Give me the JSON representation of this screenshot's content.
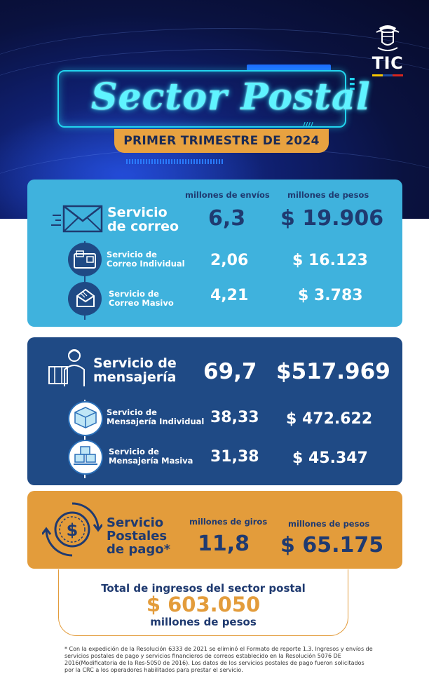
{
  "brand": {
    "logo_text": "TIC",
    "flag_colors": [
      "#f7c600",
      "#1e4ea1",
      "#d7261e"
    ],
    "crest": "colombia-coat-of-arms-icon"
  },
  "header": {
    "title": "Sector Postal",
    "subtitle": "PRIMER TRIMESTRE DE 2024"
  },
  "correo": {
    "col_envios": "millones de envíos",
    "col_pesos": "millones de pesos",
    "main": {
      "label_line1": "Servicio",
      "label_line2": "de correo",
      "envios": "6,3",
      "pesos": "$ 19.906",
      "icon": "envelope-icon"
    },
    "individual": {
      "label_line1": "Servicio de",
      "label_line2": "Correo Individual",
      "envios": "2,06",
      "pesos": "$ 16.123",
      "icon": "mailbox-icon"
    },
    "masivo": {
      "label_line1": "Servicio de",
      "label_line2": "Correo Masivo",
      "envios": "4,21",
      "pesos": "$ 3.783",
      "icon": "open-envelope-icon"
    }
  },
  "mensajeria": {
    "main": {
      "label_line1": "Servicio de",
      "label_line2": "mensajería",
      "envios": "69,7",
      "pesos": "$517.969",
      "icon": "courier-icon"
    },
    "individual": {
      "label_line1": "Servicio de",
      "label_line2": "Mensajería Individual",
      "envios": "38,33",
      "pesos": "$ 472.622",
      "icon": "package-icon"
    },
    "masiva": {
      "label_line1": "Servicio de",
      "label_line2": "Mensajería Masiva",
      "envios": "31,38",
      "pesos": "$ 45.347",
      "icon": "stacked-packages-icon"
    }
  },
  "pago": {
    "label_line1": "Servicio",
    "label_line2": "Postales",
    "label_line3": "de pago*",
    "col_giros": "millones de giros",
    "col_pesos": "millones de pesos",
    "giros": "11,8",
    "pesos": "$ 65.175",
    "icon": "money-transfer-icon"
  },
  "total": {
    "label": "Total de ingresos del sector postal",
    "value": "$ 603.050",
    "unit": "millones de pesos"
  },
  "footnote": "* Con la expedición de la Resolución 6333 de 2021 se eliminó el Formato de reporte 1.3. Ingresos y envíos de servicios postales de pago y servicios financieros de correos establecido en la Resolución 5076 DE 2016(Modificatoria de la Res-5050 de 2016). Los datos de los servicios postales de pago fueron solicitados por la CRC a los operadores habilitados para prestar el servicio.",
  "colors": {
    "correo_panel": "#3fb2dd",
    "mensajeria_panel": "#1f4a85",
    "pago_panel": "#e39c3b",
    "accent_cyan": "#22d4ee"
  }
}
